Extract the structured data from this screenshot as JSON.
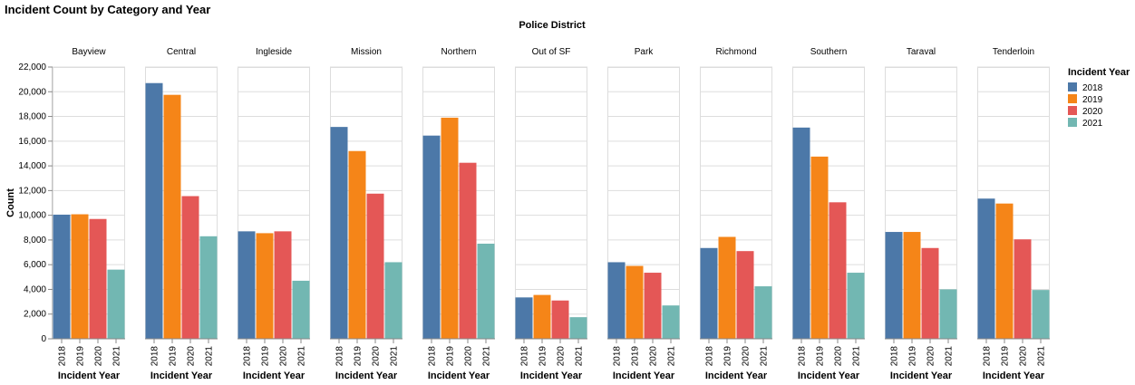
{
  "chart_data": {
    "type": "bar",
    "title": "Incident Count by Category and Year",
    "column_title": "Police District",
    "facets": [
      "Bayview",
      "Central",
      "Ingleside",
      "Mission",
      "Northern",
      "Out of SF",
      "Park",
      "Richmond",
      "Southern",
      "Taraval",
      "Tenderloin"
    ],
    "categories": [
      "2018",
      "2019",
      "2020",
      "2021"
    ],
    "series": [
      {
        "facet": "Bayview",
        "values": [
          10050,
          10080,
          9700,
          5600
        ]
      },
      {
        "facet": "Central",
        "values": [
          20700,
          19750,
          11550,
          8300
        ]
      },
      {
        "facet": "Ingleside",
        "values": [
          8700,
          8550,
          8700,
          4700
        ]
      },
      {
        "facet": "Mission",
        "values": [
          17150,
          15200,
          11750,
          6200
        ]
      },
      {
        "facet": "Northern",
        "values": [
          16450,
          17900,
          14250,
          7700
        ]
      },
      {
        "facet": "Out of SF",
        "values": [
          3350,
          3550,
          3100,
          1750
        ]
      },
      {
        "facet": "Park",
        "values": [
          6200,
          5900,
          5350,
          2700
        ]
      },
      {
        "facet": "Richmond",
        "values": [
          7350,
          8250,
          7100,
          4250
        ]
      },
      {
        "facet": "Southern",
        "values": [
          17100,
          14750,
          11050,
          5350
        ]
      },
      {
        "facet": "Taraval",
        "values": [
          8650,
          8650,
          7350,
          4000
        ]
      },
      {
        "facet": "Tenderloin",
        "values": [
          11350,
          10950,
          8050,
          3950
        ]
      }
    ],
    "xlabel": "Incident Year",
    "ylabel": "Count",
    "ylim": [
      0,
      22000
    ],
    "yticks": [
      "0",
      "2,000",
      "4,000",
      "6,000",
      "8,000",
      "10,000",
      "12,000",
      "14,000",
      "16,000",
      "18,000",
      "20,000",
      "22,000"
    ],
    "grid": true,
    "legend": {
      "title": "Incident Year",
      "position": "right",
      "items": [
        "2018",
        "2019",
        "2020",
        "2021"
      ]
    },
    "colors": [
      "#4c78a8",
      "#f58518",
      "#e45756",
      "#72b7b2"
    ]
  }
}
